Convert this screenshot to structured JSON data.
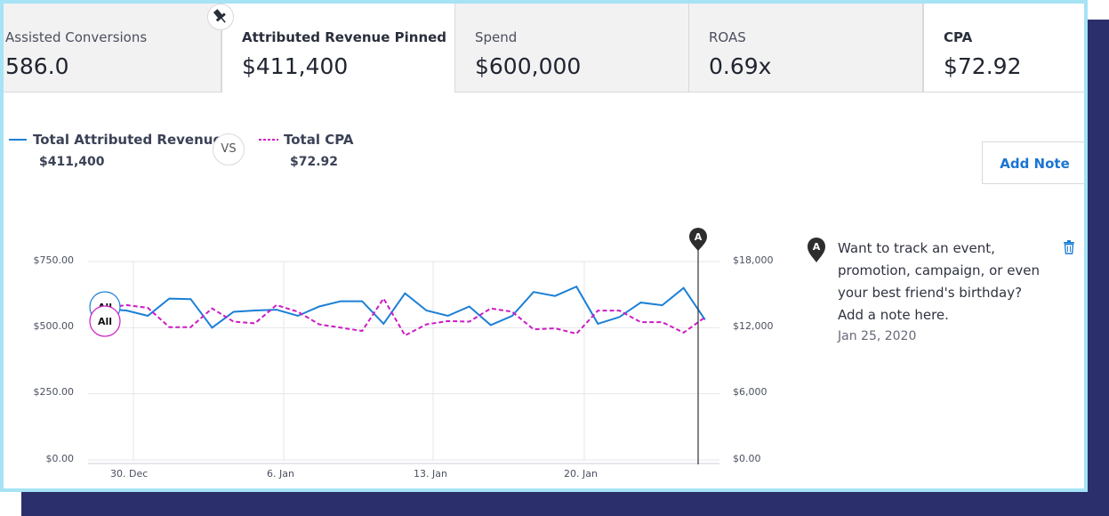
{
  "tabs": [
    {
      "label": "Assisted Conversions",
      "value": "586.0"
    },
    {
      "label": "Attributed Revenue Pinned",
      "value": "$411,400"
    },
    {
      "label": "Spend",
      "value": "$600,000"
    },
    {
      "label": "ROAS",
      "value": "0.69x"
    },
    {
      "label": "CPA",
      "value": "$72.92"
    }
  ],
  "legend": {
    "series1_label": "Total Attributed Revenue",
    "series1_value": "$411,400",
    "vs_label": "VS",
    "series2_label": "Total CPA",
    "series2_value": "$72.92"
  },
  "add_note_label": "Add Note",
  "note": {
    "marker": "A",
    "text": "Want to track an event, promotion, campaign, or even your best friend's birthday? Add a note here.",
    "date": "Jan 25, 2020"
  },
  "colors": {
    "revenue": "#1b7fd6",
    "cpa": "#cc1cc4",
    "accent": "#1b74d1",
    "frame": "#a5e3f5",
    "navy": "#2b2f6c"
  },
  "chart_data": {
    "type": "line",
    "x_labels": [
      "30. Dec",
      "6. Jan",
      "13. Jan",
      "20. Jan"
    ],
    "y_left_ticks": [
      "$750.00",
      "$500.00",
      "$250.00",
      "$0.00"
    ],
    "y_right_ticks": [
      "$18,000",
      "$12,000",
      "$6,000",
      "$0.00"
    ],
    "ylim_left": [
      0,
      750
    ],
    "ylim_right": [
      0,
      18000
    ],
    "badges": [
      "All",
      "All"
    ],
    "series": [
      {
        "name": "Total Attributed Revenue",
        "axis": "left",
        "values": [
          570,
          565,
          545,
          610,
          608,
          500,
          560,
          565,
          568,
          545,
          580,
          600,
          600,
          515,
          630,
          565,
          545,
          580,
          510,
          545,
          635,
          620,
          655,
          515,
          540,
          595,
          585,
          650,
          530
        ]
      },
      {
        "name": "Total CPA",
        "axis": "right",
        "values": [
          13800,
          14050,
          13800,
          12050,
          12050,
          13750,
          12550,
          12400,
          14050,
          13450,
          12300,
          12000,
          11700,
          14650,
          11300,
          12300,
          12600,
          12550,
          13750,
          13450,
          11850,
          11950,
          11450,
          13550,
          13550,
          12500,
          12500,
          11550,
          12950
        ]
      }
    ]
  }
}
